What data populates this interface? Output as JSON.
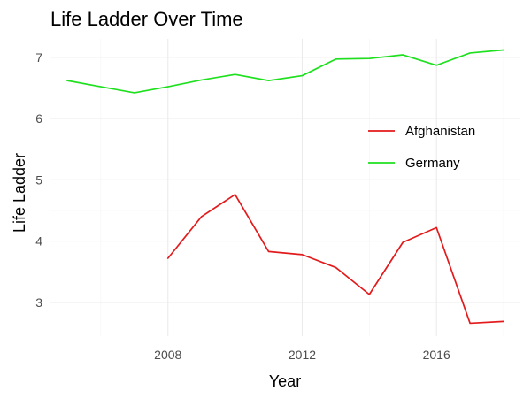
{
  "chart_data": {
    "type": "line",
    "title": "Life Ladder Over Time",
    "xlabel": "Year",
    "ylabel": "Life Ladder",
    "xlim": [
      2004.5,
      2018.5
    ],
    "ylim": [
      2.45,
      7.3
    ],
    "xticks": [
      2008,
      2012,
      2016
    ],
    "xticks_minor": [
      2006,
      2010,
      2014,
      2018
    ],
    "yticks": [
      3,
      4,
      5,
      6,
      7
    ],
    "yticks_minor": [
      3.5,
      4.5,
      5.5,
      6.5
    ],
    "grid": true,
    "legend_position": "right",
    "series": [
      {
        "name": "Afghanistan",
        "color": "#e31a1c",
        "x": [
          2008,
          2009,
          2010,
          2011,
          2012,
          2013,
          2014,
          2015,
          2016,
          2017,
          2018
        ],
        "y": [
          3.72,
          4.4,
          4.76,
          3.83,
          3.78,
          3.57,
          3.13,
          3.98,
          4.22,
          2.66,
          2.69
        ]
      },
      {
        "name": "Germany",
        "color": "#1ee01e",
        "x": [
          2005,
          2006,
          2007,
          2008,
          2009,
          2010,
          2011,
          2012,
          2013,
          2014,
          2015,
          2016,
          2017,
          2018
        ],
        "y": [
          6.62,
          6.52,
          6.42,
          6.52,
          6.63,
          6.72,
          6.62,
          6.7,
          6.97,
          6.98,
          7.04,
          6.87,
          7.07,
          7.12
        ]
      }
    ]
  }
}
